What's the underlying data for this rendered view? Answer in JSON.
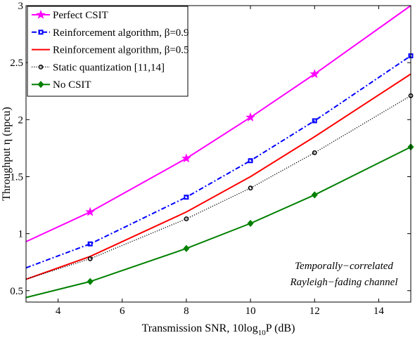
{
  "chart_data": {
    "type": "line",
    "xlabel": "Transmission SNR, 10log10P (dB)",
    "ylabel": "Throughput η (npcu)",
    "xlim": [
      3,
      15
    ],
    "ylim": [
      0.4,
      3
    ],
    "xticks": [
      4,
      6,
      8,
      10,
      12,
      14
    ],
    "yticks": [
      0.5,
      1,
      1.5,
      2,
      2.5,
      3
    ],
    "grid": false,
    "legend_position": "top-left",
    "annotation": [
      "Temporally−correlated",
      "Rayleigh−fading channel"
    ],
    "series": [
      {
        "name": "Perfect CSIT",
        "color": "#ff00ff",
        "line": "solid",
        "marker": "star",
        "x": [
          3,
          5,
          8,
          10,
          12,
          15
        ],
        "y": [
          0.93,
          1.19,
          1.66,
          2.02,
          2.4,
          3.0
        ],
        "marker_x": [
          5,
          8,
          10,
          12
        ]
      },
      {
        "name": "Reinforcement algorithm, β=0.9",
        "color": "#0000ff",
        "line": "dashdot",
        "marker": "square",
        "x": [
          3,
          5,
          8,
          10,
          12,
          15
        ],
        "y": [
          0.7,
          0.91,
          1.32,
          1.64,
          1.99,
          2.56
        ],
        "marker_x": [
          5,
          8,
          10,
          12,
          15
        ]
      },
      {
        "name": "Reinforcement algorithm, β=0.5",
        "color": "#ff0000",
        "line": "solid",
        "marker": "none",
        "x": [
          3,
          5,
          8,
          10,
          12,
          15
        ],
        "y": [
          0.6,
          0.8,
          1.19,
          1.5,
          1.85,
          2.4
        ],
        "marker_x": []
      },
      {
        "name": "Static quantization [11,14]",
        "color": "#000000",
        "line": "dotted",
        "marker": "circle",
        "x": [
          3,
          5,
          8,
          10,
          12,
          15
        ],
        "y": [
          0.6,
          0.78,
          1.13,
          1.4,
          1.71,
          2.21
        ],
        "marker_x": [
          5,
          8,
          10,
          12,
          15
        ]
      },
      {
        "name": "No CSIT",
        "color": "#008000",
        "line": "solid",
        "marker": "diamond",
        "x": [
          3,
          5,
          8,
          10,
          12,
          15
        ],
        "y": [
          0.44,
          0.58,
          0.87,
          1.09,
          1.34,
          1.76
        ],
        "marker_x": [
          5,
          8,
          10,
          12,
          15
        ]
      }
    ]
  }
}
